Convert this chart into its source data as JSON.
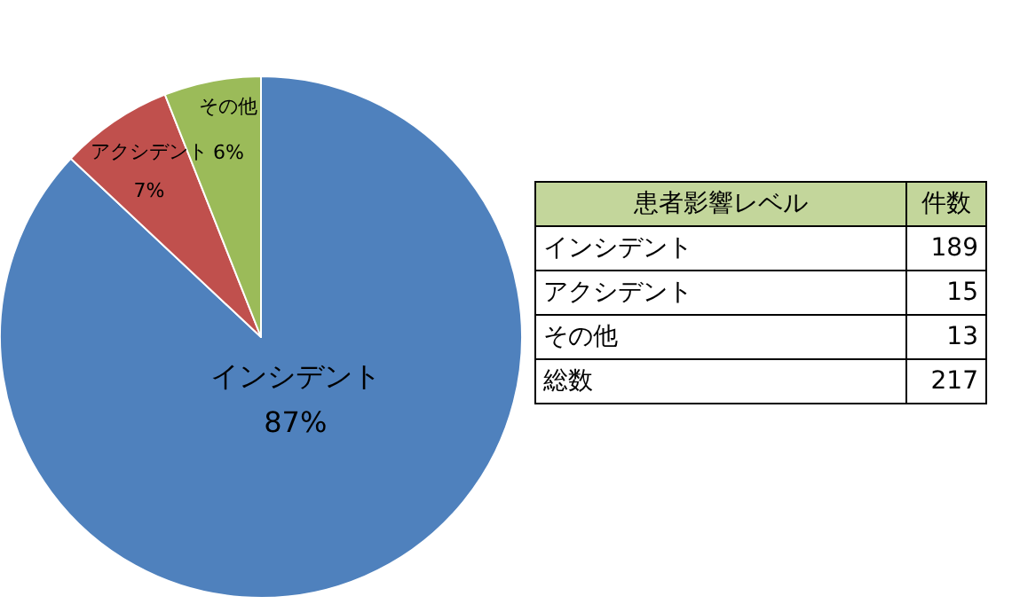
{
  "chart_data": [
    {
      "type": "pie",
      "categories": [
        "インシデント",
        "アクシデント",
        "その他"
      ],
      "values": [
        87,
        7,
        6
      ],
      "colors": [
        "#4f81bd",
        "#c0504d",
        "#9bbb59"
      ],
      "value_labels": [
        "87%",
        "7%",
        "6%"
      ],
      "legend": false
    },
    {
      "type": "other",
      "categories": [
        "インシデント",
        "アクシデント",
        "その他"
      ],
      "values": [
        189,
        15,
        13
      ],
      "annotations": [
        "患者影響レベル",
        "件数",
        "総数"
      ],
      "totals": [
        "217"
      ],
      "data_labels": true
    }
  ]
}
